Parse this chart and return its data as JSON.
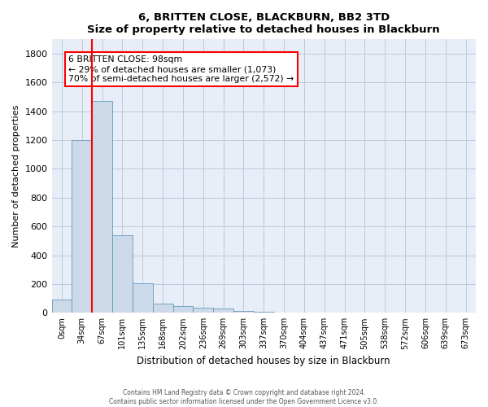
{
  "title": "6, BRITTEN CLOSE, BLACKBURN, BB2 3TD",
  "subtitle": "Size of property relative to detached houses in Blackburn",
  "xlabel": "Distribution of detached houses by size in Blackburn",
  "ylabel": "Number of detached properties",
  "bar_color": "#ccd9e8",
  "bar_edge_color": "#6699bb",
  "background_color": "#e8eef8",
  "grid_color": "#c0c8d8",
  "categories": [
    "0sqm",
    "34sqm",
    "67sqm",
    "101sqm",
    "135sqm",
    "168sqm",
    "202sqm",
    "236sqm",
    "269sqm",
    "303sqm",
    "337sqm",
    "370sqm",
    "404sqm",
    "437sqm",
    "471sqm",
    "505sqm",
    "538sqm",
    "572sqm",
    "606sqm",
    "639sqm",
    "673sqm"
  ],
  "values": [
    90,
    1200,
    1470,
    540,
    205,
    65,
    47,
    38,
    28,
    14,
    10,
    0,
    0,
    0,
    0,
    0,
    0,
    0,
    0,
    0,
    0
  ],
  "property_line_x": 1.5,
  "property_label": "6 BRITTEN CLOSE: 98sqm",
  "annotation_line1": "← 29% of detached houses are smaller (1,073)",
  "annotation_line2": "70% of semi-detached houses are larger (2,572) →",
  "ylim": [
    0,
    1900
  ],
  "yticks": [
    0,
    200,
    400,
    600,
    800,
    1000,
    1200,
    1400,
    1600,
    1800
  ],
  "footer_line1": "Contains HM Land Registry data © Crown copyright and database right 2024.",
  "footer_line2": "Contains public sector information licensed under the Open Government Licence v3.0."
}
